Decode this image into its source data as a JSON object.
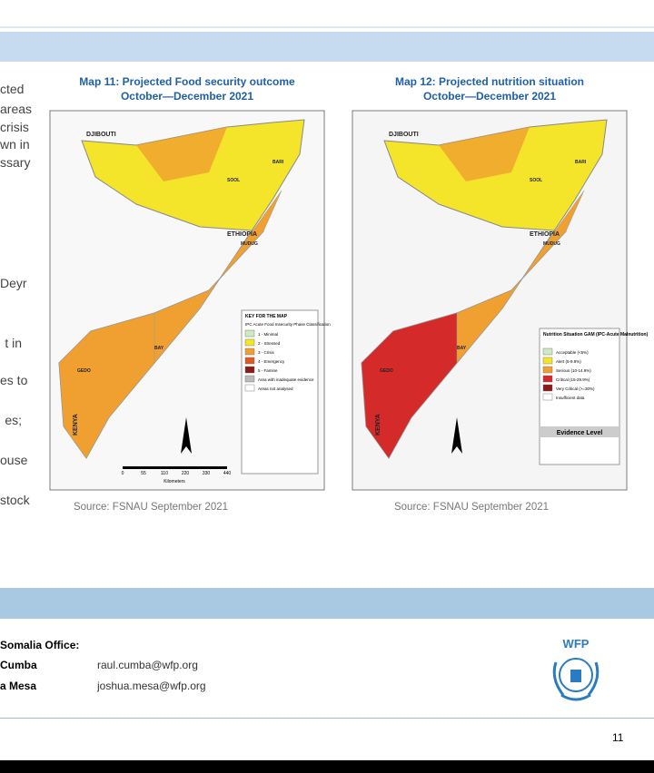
{
  "left_text": [
    "cted",
    "areas",
    "crisis",
    "wn in",
    "ssary",
    "Deyr",
    "t in",
    "es to",
    "es;",
    "ouse",
    "stock"
  ],
  "maps": [
    {
      "title_line1": "Map 11: Projected Food security outcome",
      "title_line2": "October—December 2021",
      "places": [
        "DJIBOUTI",
        "ETHIOPIA",
        "KENYA",
        "BAY",
        "GEDO",
        "SOOL",
        "BARI",
        "MUDUG"
      ],
      "legend_title": "KEY FOR THE MAP",
      "legend_subtitle": "IPC Acute Food Insecurity Phase Classification",
      "legend_items": [
        "1 - Minimal",
        "2 - Stressed",
        "3 - Crisis",
        "4 - Emergency",
        "5 - Famine",
        "Area with inadequate evidence",
        "Areas not analysed"
      ],
      "scale_labels": [
        "0",
        "55",
        "110",
        "220",
        "330",
        "440"
      ],
      "scale_unit": "Kilometers",
      "source": "Source: FSNAU September 2021"
    },
    {
      "title_line1": "Map 12: Projected nutrition situation",
      "title_line2": "October—December 2021",
      "places": [
        "DJIBOUTI",
        "ETHIOPIA",
        "KENYA",
        "BAY",
        "GEDO",
        "SOOL",
        "BARI",
        "MUDUG"
      ],
      "legend_title": "Nutrition Situation GAM (IPC-Acute Malnutrition)",
      "legend_items": [
        "Acceptable (<5%)",
        "Alert (5-9.9%)",
        "Serious (10-14.9%)",
        "Critical (15-29.9%)",
        "Very Critical (>=30%)",
        "Insufficient data"
      ],
      "evidence_title": "Evidence Level",
      "source": "Source: FSNAU September 2021"
    }
  ],
  "footer": {
    "office": "Somalia Office:",
    "contacts": [
      {
        "name": "Cumba",
        "email": "raul.cumba@wfp.org"
      },
      {
        "name": "a Mesa",
        "email": "joshua.mesa@wfp.org"
      }
    ],
    "logo": "WFP",
    "page": "11"
  }
}
